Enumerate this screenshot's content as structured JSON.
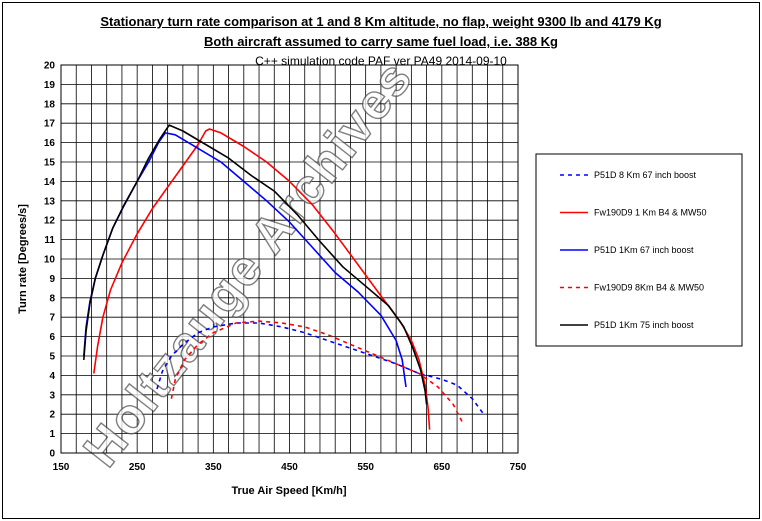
{
  "titles": {
    "line1": "Stationary turn rate comparison at 1 and 8 Km altitude, no flap, weight 9300 lb and 4179 Kg",
    "line2": "Both aircraft assumed to carry same fuel load, i.e. 388 Kg",
    "subtitle": "C++ simulation code PAF ver PA49 2014-09-10"
  },
  "watermark": "Holtzauge Archives",
  "chart_data": {
    "type": "line",
    "xlabel": "True Air Speed [Km/h]",
    "ylabel": "Turn rate [Degrees/s]",
    "xlim": [
      150,
      750
    ],
    "ylim": [
      0,
      20
    ],
    "x_major_ticks": [
      150,
      250,
      350,
      450,
      550,
      650,
      750
    ],
    "x_minor_step": 20,
    "y_step": 1,
    "grid": true,
    "legend_position": "right",
    "series": [
      {
        "name": "P51D 8 Km 67 inch boost",
        "color": "#0000ff",
        "dash": "dashed",
        "points": [
          [
            276,
            3.3
          ],
          [
            283,
            4.2
          ],
          [
            295,
            5.0
          ],
          [
            310,
            5.6
          ],
          [
            330,
            6.2
          ],
          [
            350,
            6.5
          ],
          [
            380,
            6.7
          ],
          [
            410,
            6.7
          ],
          [
            440,
            6.5
          ],
          [
            470,
            6.2
          ],
          [
            500,
            5.8
          ],
          [
            530,
            5.4
          ],
          [
            560,
            5.0
          ],
          [
            590,
            4.6
          ],
          [
            620,
            4.1
          ],
          [
            650,
            3.8
          ],
          [
            670,
            3.5
          ],
          [
            690,
            2.8
          ],
          [
            705,
            2.0
          ]
        ]
      },
      {
        "name": "Fw190D9 1 Km B4 & MW50",
        "color": "#ff0000",
        "dash": "solid",
        "points": [
          [
            193,
            4.1
          ],
          [
            198,
            5.5
          ],
          [
            205,
            7.0
          ],
          [
            215,
            8.4
          ],
          [
            230,
            9.8
          ],
          [
            250,
            11.3
          ],
          [
            270,
            12.6
          ],
          [
            290,
            13.7
          ],
          [
            310,
            14.8
          ],
          [
            330,
            15.9
          ],
          [
            340,
            16.6
          ],
          [
            345,
            16.7
          ],
          [
            360,
            16.5
          ],
          [
            390,
            15.8
          ],
          [
            420,
            15.0
          ],
          [
            450,
            14.0
          ],
          [
            480,
            12.8
          ],
          [
            510,
            11.3
          ],
          [
            540,
            9.7
          ],
          [
            570,
            8.1
          ],
          [
            595,
            6.8
          ],
          [
            610,
            5.8
          ],
          [
            620,
            4.8
          ],
          [
            628,
            3.5
          ],
          [
            632,
            2.3
          ],
          [
            634,
            1.2
          ]
        ]
      },
      {
        "name": "P51D 1Km 67 inch boost",
        "color": "#0000ff",
        "dash": "solid",
        "points": [
          [
            180,
            5.0
          ],
          [
            183,
            6.5
          ],
          [
            188,
            7.8
          ],
          [
            195,
            9.0
          ],
          [
            205,
            10.2
          ],
          [
            218,
            11.6
          ],
          [
            232,
            12.7
          ],
          [
            250,
            14.0
          ],
          [
            265,
            15.0
          ],
          [
            278,
            16.0
          ],
          [
            287,
            16.5
          ],
          [
            300,
            16.4
          ],
          [
            330,
            15.7
          ],
          [
            360,
            15.0
          ],
          [
            390,
            14.0
          ],
          [
            420,
            13.0
          ],
          [
            450,
            11.9
          ],
          [
            480,
            10.6
          ],
          [
            510,
            9.3
          ],
          [
            540,
            8.3
          ],
          [
            570,
            7.1
          ],
          [
            590,
            5.8
          ],
          [
            598,
            4.8
          ],
          [
            603,
            3.4
          ]
        ]
      },
      {
        "name": "Fw190D9 8Km B4 & MW50",
        "color": "#ff0000",
        "dash": "dashed",
        "points": [
          [
            295,
            2.8
          ],
          [
            300,
            3.8
          ],
          [
            312,
            4.8
          ],
          [
            330,
            5.6
          ],
          [
            350,
            6.2
          ],
          [
            380,
            6.7
          ],
          [
            410,
            6.8
          ],
          [
            440,
            6.7
          ],
          [
            470,
            6.5
          ],
          [
            500,
            6.1
          ],
          [
            530,
            5.6
          ],
          [
            560,
            5.1
          ],
          [
            590,
            4.6
          ],
          [
            620,
            4.1
          ],
          [
            645,
            3.4
          ],
          [
            665,
            2.5
          ],
          [
            678,
            1.5
          ]
        ]
      },
      {
        "name": "P51D 1Km 75 inch boost",
        "color": "#000000",
        "dash": "solid",
        "points": [
          [
            180,
            4.8
          ],
          [
            183,
            6.3
          ],
          [
            188,
            7.7
          ],
          [
            195,
            9.0
          ],
          [
            205,
            10.2
          ],
          [
            218,
            11.6
          ],
          [
            233,
            12.8
          ],
          [
            250,
            14.0
          ],
          [
            265,
            15.2
          ],
          [
            280,
            16.2
          ],
          [
            292,
            16.9
          ],
          [
            310,
            16.6
          ],
          [
            340,
            15.9
          ],
          [
            370,
            15.2
          ],
          [
            400,
            14.3
          ],
          [
            430,
            13.5
          ],
          [
            460,
            12.3
          ],
          [
            490,
            10.9
          ],
          [
            520,
            9.6
          ],
          [
            550,
            8.6
          ],
          [
            580,
            7.6
          ],
          [
            600,
            6.5
          ],
          [
            612,
            5.4
          ],
          [
            622,
            4.3
          ],
          [
            628,
            3.2
          ],
          [
            630,
            2.5
          ]
        ]
      }
    ]
  }
}
